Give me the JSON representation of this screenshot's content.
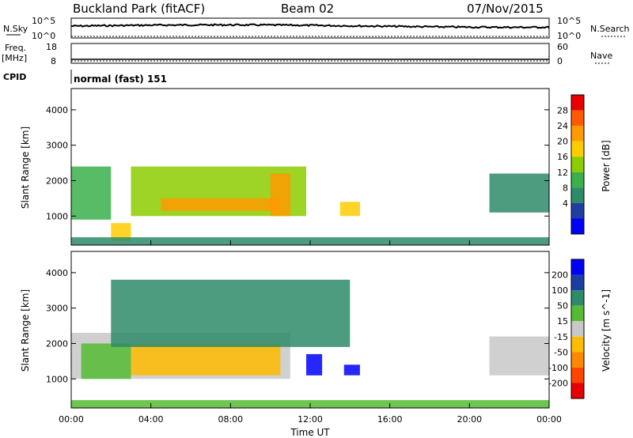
{
  "header": {
    "station": "Buckland Park (fitACF)",
    "beam": "Beam 02",
    "date": "07/Nov/2015"
  },
  "panels": {
    "nsky": {
      "left_label": "N.Sky",
      "right_label": "N.Search",
      "left_top_tick": "10^5",
      "left_bottom_tick": "10^0",
      "right_top_tick": "10^5",
      "right_bottom_tick": "10^0"
    },
    "freq": {
      "left_label": "Freq.",
      "unit": "[MHz]",
      "left_top_tick": "18",
      "left_bottom_tick": "8",
      "right_label": "Nave",
      "right_top_tick": "60",
      "right_bottom_tick": "0"
    },
    "cpid": {
      "label": "CPID",
      "value": "normal (fast) 151"
    }
  },
  "power_colorbar": {
    "label": "Power [dB]",
    "ticks": [
      "28",
      "24",
      "20",
      "16",
      "12",
      "8",
      "4"
    ],
    "colors": [
      "#e80000",
      "#ff5a00",
      "#ff9a00",
      "#ffcc00",
      "#8ccc00",
      "#39b04a",
      "#2e8b6a",
      "#1e3fa0",
      "#0000ff"
    ]
  },
  "velocity_colorbar": {
    "label": "Velocity [m s^-1]",
    "ticks": [
      "200",
      "100",
      "50",
      "15",
      "-15",
      "-50",
      "-100",
      "-200"
    ],
    "colors": [
      "#0000ff",
      "#1a3fa0",
      "#2e8b6a",
      "#55bb33",
      "#c8c8c8",
      "#ffbb00",
      "#ff8800",
      "#ff4400",
      "#e80000"
    ]
  },
  "x_axis": {
    "label": "Time UT",
    "ticks": [
      "00:00",
      "04:00",
      "08:00",
      "12:00",
      "16:00",
      "20:00",
      "00:00"
    ]
  },
  "chart_data": [
    {
      "type": "heatmap",
      "title": "Power",
      "xlabel": "Time UT",
      "ylabel": "Slant Range [km]",
      "x_range_hours": [
        0,
        24
      ],
      "ylim": [
        180,
        4600
      ],
      "yticks": [
        1000,
        2000,
        3000,
        4000
      ],
      "color_scale": "Power [dB]",
      "regions": [
        {
          "t": [
            0.0,
            2.0
          ],
          "range": [
            900,
            2400
          ],
          "level": 14
        },
        {
          "t": [
            2.0,
            3.0
          ],
          "range": [
            300,
            800
          ],
          "level": 22
        },
        {
          "t": [
            3.0,
            11.8
          ],
          "range": [
            1000,
            2400
          ],
          "level": 18
        },
        {
          "t": [
            4.5,
            10.5
          ],
          "range": [
            1150,
            1500
          ],
          "level": 26
        },
        {
          "t": [
            10.0,
            11.0
          ],
          "range": [
            1000,
            2200
          ],
          "level": 24
        },
        {
          "t": [
            13.5,
            14.5
          ],
          "range": [
            1000,
            1400
          ],
          "level": 22
        },
        {
          "t": [
            21.0,
            24.0
          ],
          "range": [
            1100,
            2200
          ],
          "level": 8
        },
        {
          "t": [
            0.0,
            24.0
          ],
          "range": [
            180,
            400
          ],
          "level": 10
        }
      ]
    },
    {
      "type": "heatmap",
      "title": "Velocity",
      "xlabel": "Time UT",
      "ylabel": "Slant Range [km]",
      "x_range_hours": [
        0,
        24
      ],
      "ylim": [
        180,
        4600
      ],
      "yticks": [
        1000,
        2000,
        3000,
        4000
      ],
      "color_scale": "Velocity [m s^-1]",
      "regions": [
        {
          "t": [
            0.0,
            11.0
          ],
          "range": [
            1000,
            2300
          ],
          "level": 0
        },
        {
          "t": [
            0.5,
            3.0
          ],
          "range": [
            1000,
            2000
          ],
          "level": 30
        },
        {
          "t": [
            3.0,
            10.5
          ],
          "range": [
            1100,
            2000
          ],
          "level": -40
        },
        {
          "t": [
            11.8,
            12.6
          ],
          "range": [
            1100,
            1700
          ],
          "level": 200
        },
        {
          "t": [
            13.7,
            14.5
          ],
          "range": [
            1100,
            1400
          ],
          "level": 200
        },
        {
          "t": [
            2.0,
            14.0
          ],
          "range": [
            1900,
            3800
          ],
          "level": 60
        },
        {
          "t": [
            21.0,
            24.0
          ],
          "range": [
            1100,
            2200
          ],
          "level": 0
        },
        {
          "t": [
            0.0,
            24.0
          ],
          "range": [
            180,
            400
          ],
          "level": 30
        }
      ]
    }
  ]
}
